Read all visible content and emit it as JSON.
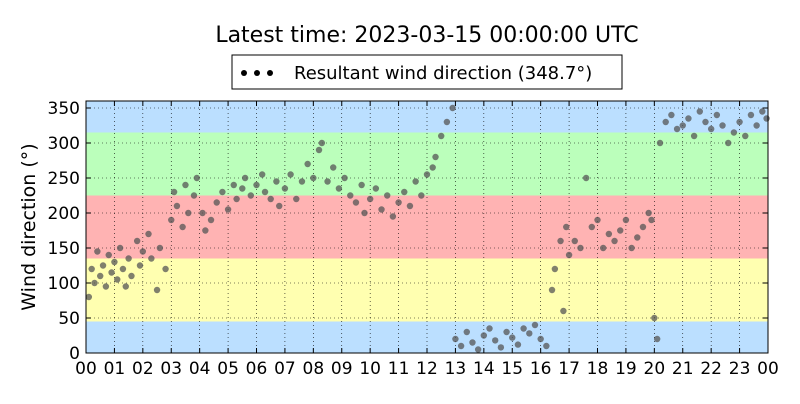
{
  "chart_data": {
    "type": "scatter",
    "title": "Latest time: 2023-03-15 00:00:00 UTC",
    "xlabel": "",
    "ylabel": "Wind direction (°)",
    "legend": {
      "placement": "top-center",
      "entries": [
        {
          "label": "Resultant wind direction (348.7°)",
          "marker": "black dots"
        }
      ]
    },
    "xlim": [
      0,
      24
    ],
    "ylim": [
      0,
      360
    ],
    "x_ticks": [
      "00",
      "01",
      "02",
      "03",
      "04",
      "05",
      "06",
      "07",
      "08",
      "09",
      "10",
      "11",
      "12",
      "13",
      "14",
      "15",
      "16",
      "17",
      "18",
      "19",
      "20",
      "21",
      "22",
      "23",
      "00"
    ],
    "y_ticks": [
      0,
      50,
      100,
      150,
      200,
      250,
      300,
      350
    ],
    "grid": "dotted",
    "bands": [
      {
        "from": 0,
        "to": 45,
        "color": "#bbdfff"
      },
      {
        "from": 45,
        "to": 135,
        "color": "#ffffb0"
      },
      {
        "from": 135,
        "to": 225,
        "color": "#ffb3b3"
      },
      {
        "from": 225,
        "to": 315,
        "color": "#bbffbb"
      },
      {
        "from": 315,
        "to": 360,
        "color": "#bbdfff"
      }
    ],
    "series": [
      {
        "name": "Resultant wind direction (348.7°)",
        "color": "#000000",
        "points": [
          [
            0.1,
            80
          ],
          [
            0.2,
            120
          ],
          [
            0.3,
            100
          ],
          [
            0.4,
            145
          ],
          [
            0.5,
            110
          ],
          [
            0.6,
            125
          ],
          [
            0.7,
            95
          ],
          [
            0.8,
            140
          ],
          [
            0.9,
            115
          ],
          [
            1.0,
            130
          ],
          [
            1.1,
            105
          ],
          [
            1.2,
            150
          ],
          [
            1.3,
            120
          ],
          [
            1.4,
            95
          ],
          [
            1.5,
            135
          ],
          [
            1.6,
            110
          ],
          [
            1.8,
            160
          ],
          [
            1.9,
            125
          ],
          [
            2.0,
            145
          ],
          [
            2.2,
            170
          ],
          [
            2.3,
            135
          ],
          [
            2.5,
            90
          ],
          [
            2.6,
            150
          ],
          [
            2.8,
            120
          ],
          [
            3.0,
            190
          ],
          [
            3.1,
            230
          ],
          [
            3.2,
            210
          ],
          [
            3.4,
            180
          ],
          [
            3.5,
            240
          ],
          [
            3.6,
            200
          ],
          [
            3.8,
            225
          ],
          [
            3.9,
            250
          ],
          [
            4.1,
            200
          ],
          [
            4.2,
            175
          ],
          [
            4.4,
            190
          ],
          [
            4.6,
            215
          ],
          [
            4.8,
            230
          ],
          [
            5.0,
            205
          ],
          [
            5.2,
            240
          ],
          [
            5.3,
            220
          ],
          [
            5.5,
            235
          ],
          [
            5.6,
            250
          ],
          [
            5.8,
            225
          ],
          [
            6.0,
            240
          ],
          [
            6.2,
            255
          ],
          [
            6.3,
            230
          ],
          [
            6.5,
            220
          ],
          [
            6.7,
            245
          ],
          [
            6.8,
            210
          ],
          [
            7.0,
            235
          ],
          [
            7.2,
            255
          ],
          [
            7.4,
            220
          ],
          [
            7.6,
            245
          ],
          [
            7.8,
            270
          ],
          [
            8.0,
            250
          ],
          [
            8.2,
            290
          ],
          [
            8.3,
            300
          ],
          [
            8.5,
            245
          ],
          [
            8.7,
            265
          ],
          [
            8.9,
            235
          ],
          [
            9.1,
            250
          ],
          [
            9.3,
            225
          ],
          [
            9.5,
            215
          ],
          [
            9.7,
            240
          ],
          [
            9.8,
            200
          ],
          [
            10.0,
            220
          ],
          [
            10.2,
            235
          ],
          [
            10.4,
            205
          ],
          [
            10.6,
            225
          ],
          [
            10.8,
            195
          ],
          [
            11.0,
            215
          ],
          [
            11.2,
            230
          ],
          [
            11.4,
            210
          ],
          [
            11.6,
            245
          ],
          [
            11.8,
            225
          ],
          [
            12.0,
            255
          ],
          [
            12.2,
            265
          ],
          [
            12.3,
            280
          ],
          [
            12.5,
            310
          ],
          [
            12.7,
            330
          ],
          [
            12.9,
            350
          ],
          [
            13.0,
            20
          ],
          [
            13.2,
            10
          ],
          [
            13.4,
            30
          ],
          [
            13.6,
            15
          ],
          [
            13.8,
            5
          ],
          [
            14.0,
            25
          ],
          [
            14.2,
            35
          ],
          [
            14.4,
            18
          ],
          [
            14.6,
            8
          ],
          [
            14.8,
            30
          ],
          [
            15.0,
            22
          ],
          [
            15.2,
            12
          ],
          [
            15.4,
            35
          ],
          [
            15.6,
            28
          ],
          [
            15.8,
            40
          ],
          [
            16.0,
            20
          ],
          [
            16.2,
            10
          ],
          [
            16.4,
            90
          ],
          [
            16.5,
            120
          ],
          [
            16.7,
            160
          ],
          [
            16.8,
            60
          ],
          [
            16.9,
            180
          ],
          [
            17.0,
            140
          ],
          [
            17.2,
            160
          ],
          [
            17.4,
            150
          ],
          [
            17.6,
            250
          ],
          [
            17.8,
            180
          ],
          [
            18.0,
            190
          ],
          [
            18.2,
            150
          ],
          [
            18.4,
            170
          ],
          [
            18.6,
            160
          ],
          [
            18.8,
            175
          ],
          [
            19.0,
            190
          ],
          [
            19.2,
            150
          ],
          [
            19.4,
            165
          ],
          [
            19.6,
            180
          ],
          [
            19.8,
            200
          ],
          [
            19.9,
            190
          ],
          [
            20.0,
            50
          ],
          [
            20.1,
            20
          ],
          [
            20.2,
            300
          ],
          [
            20.4,
            330
          ],
          [
            20.6,
            340
          ],
          [
            20.8,
            320
          ],
          [
            21.0,
            325
          ],
          [
            21.2,
            335
          ],
          [
            21.4,
            310
          ],
          [
            21.6,
            345
          ],
          [
            21.8,
            330
          ],
          [
            22.0,
            320
          ],
          [
            22.2,
            340
          ],
          [
            22.4,
            325
          ],
          [
            22.6,
            300
          ],
          [
            22.8,
            315
          ],
          [
            23.0,
            330
          ],
          [
            23.2,
            310
          ],
          [
            23.4,
            340
          ],
          [
            23.6,
            325
          ],
          [
            23.8,
            345
          ],
          [
            23.95,
            335
          ]
        ]
      }
    ]
  }
}
